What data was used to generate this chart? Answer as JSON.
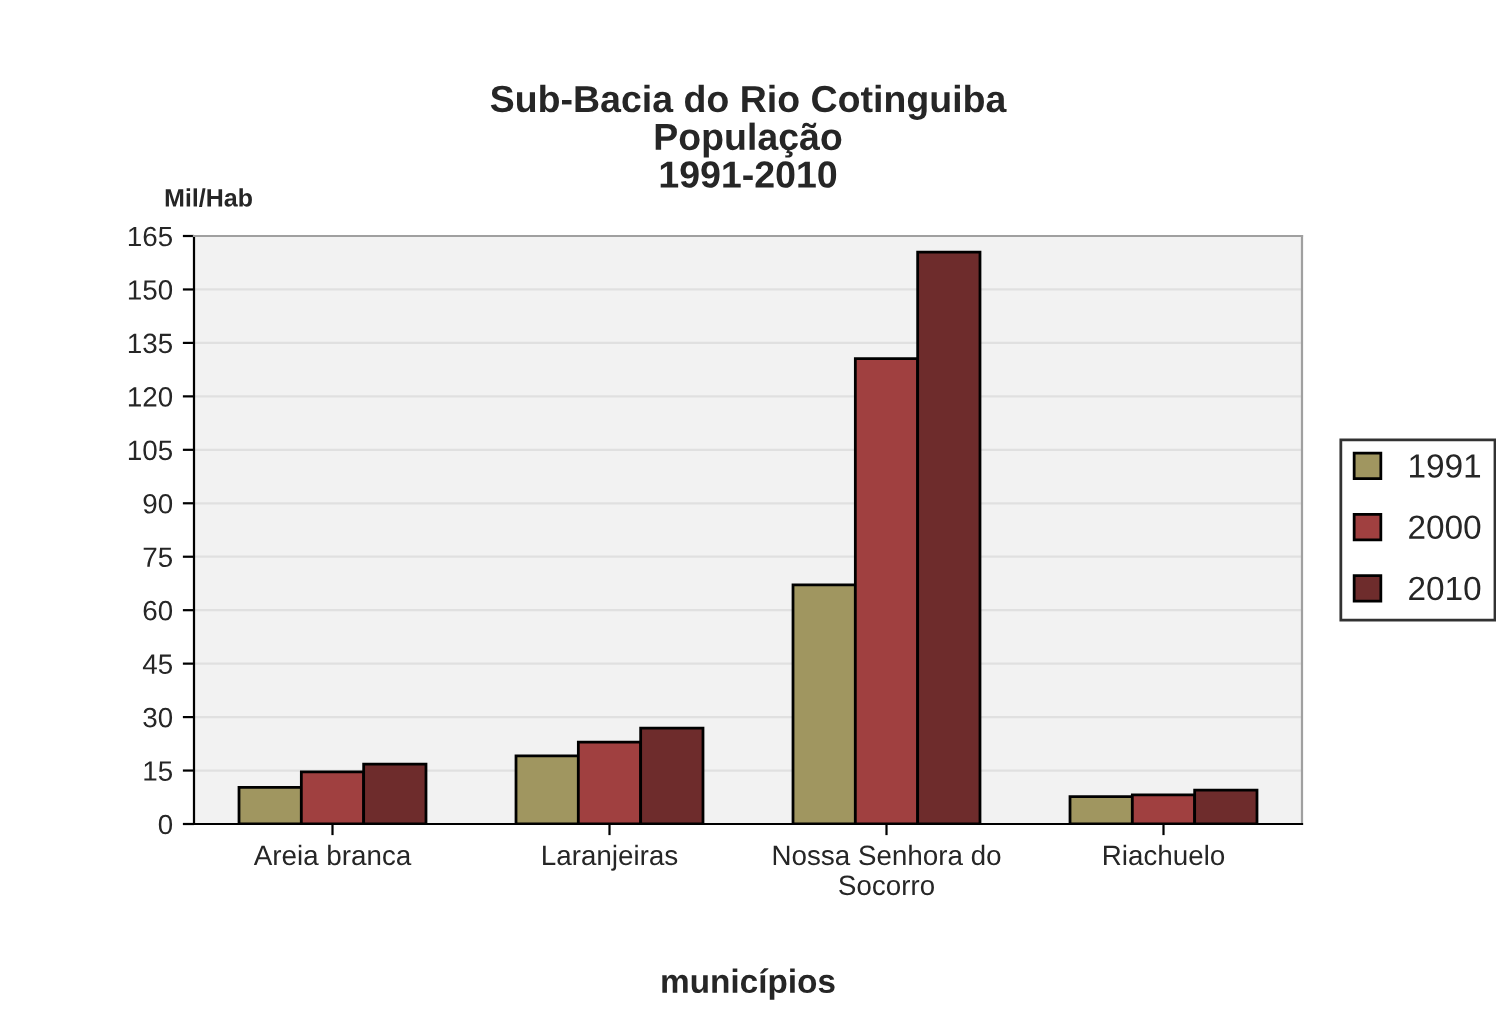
{
  "chart_data": {
    "type": "bar",
    "title": "Sub-Bacia do Rio Cotinguiba\nPopulação\n1991-2010",
    "ylabel": "Mil/Hab",
    "xlabel": "municípios",
    "categories": [
      "Areia branca",
      "Laranjeiras",
      "Nossa Senhora do\nSocorro",
      "Riachuelo"
    ],
    "series": [
      {
        "name": "1991",
        "color": "#a09660",
        "values": [
          10.3,
          19.1,
          67.1,
          7.7
        ]
      },
      {
        "name": "2000",
        "color": "#a04040",
        "values": [
          14.6,
          23.0,
          130.6,
          8.2
        ]
      },
      {
        "name": "2010",
        "color": "#6e2c2c",
        "values": [
          16.8,
          26.9,
          160.5,
          9.5
        ]
      }
    ],
    "ylim": [
      0,
      165
    ],
    "yticks": [
      0,
      15,
      30,
      45,
      60,
      75,
      90,
      105,
      120,
      135,
      150,
      165
    ],
    "grid": "y",
    "legend": "right"
  }
}
